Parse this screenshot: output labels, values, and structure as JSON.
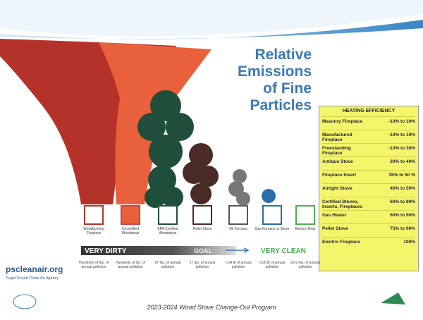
{
  "title": [
    "Relative",
    "Emissions",
    "of Fine",
    "Particles"
  ],
  "heaters": [
    {
      "label": "Woodburning Fireplace",
      "pollution": "Hundreds of lbs. of annual pollution"
    },
    {
      "label": "Uncertified Woodstove",
      "pollution": "Hundreds of lbs. of annual pollution"
    },
    {
      "label": "EPA Certified Woodstove",
      "pollution": "97 lbs. of annual pollution"
    },
    {
      "label": "Pellet Stove",
      "pollution": "27 lbs. of annual pollution"
    },
    {
      "label": "Oil Furnace",
      "pollution": "<1/4 lb of annual pollution"
    },
    {
      "label": "Gas Furnace or Stove",
      "pollution": "<1/5 lb of annual pollution"
    },
    {
      "label": "Electric Heat",
      "pollution": "Zero lbs. of annual pollution"
    }
  ],
  "scale": {
    "dirty": "VERY DIRTY",
    "goal": "GOAL",
    "clean": "VERY CLEAN"
  },
  "efficiency": {
    "heading": "HEATING EFFICIENCY",
    "rows": [
      [
        "Masonry Fireplace",
        "-10% to 10%"
      ],
      [
        "Manufactured Fireplace",
        "-10% to 10%"
      ],
      [
        "Freestanding Fireplace",
        "-10% to 30%"
      ],
      [
        "Antique Stove",
        "20% to 40%"
      ],
      [
        "Fireplace Insert",
        "35% to 50 %"
      ],
      [
        "Airtight Stove",
        "40% to 50%"
      ],
      [
        "Certified Stoves, Inserts, Fireplaces",
        "60% to 80%"
      ],
      [
        "Gas Heater",
        "60% to 90%"
      ],
      [
        "Pellet Stove",
        "75% to 90%"
      ],
      [
        "Electric Fireplace",
        "100%"
      ]
    ]
  },
  "logo": {
    "url": "pscleanair.org",
    "agency": "Puget Sound Clean Air Agency"
  },
  "footer": "2023-2024 Wood Stove Change-Out Program"
}
